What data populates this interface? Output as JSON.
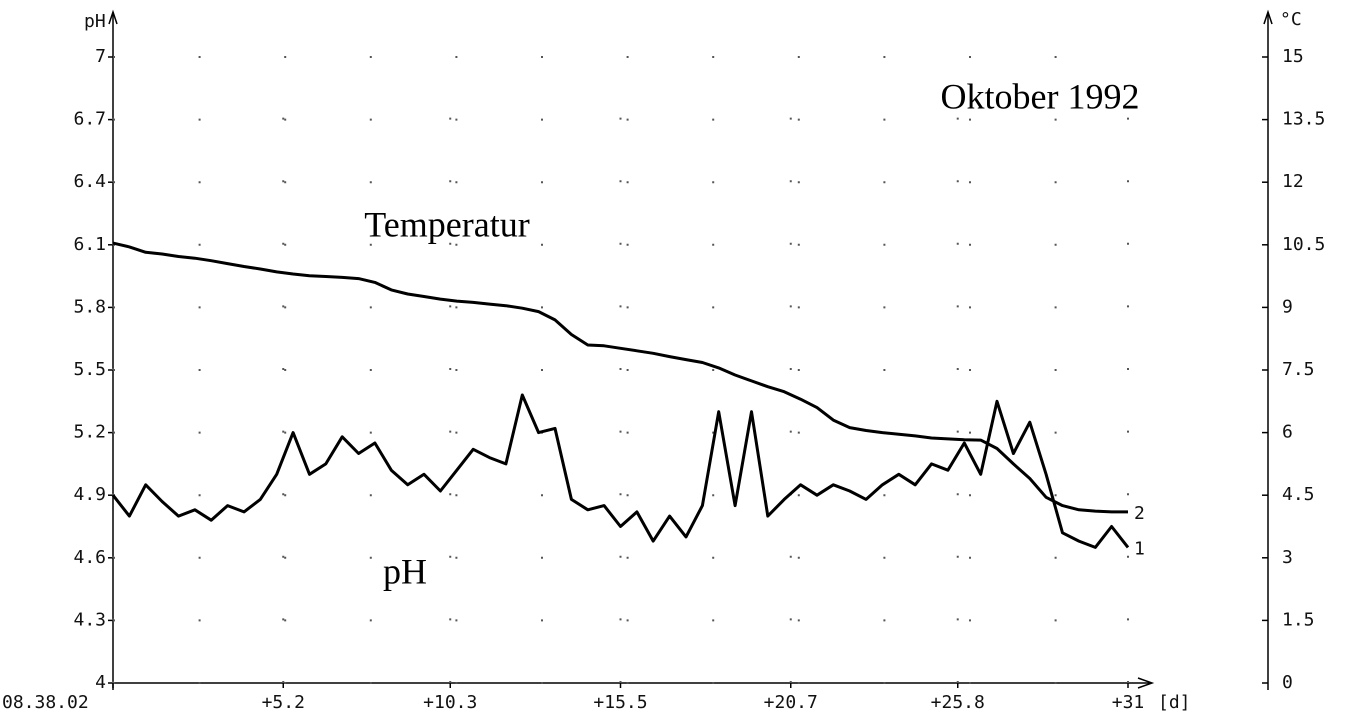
{
  "chart_data": {
    "type": "line",
    "title": "Oktober 1992",
    "ylabel": "pH",
    "y2label": "°C",
    "xlabel": "[d]",
    "x": [
      0,
      0.5,
      1,
      1.5,
      2,
      2.5,
      3,
      3.5,
      4,
      4.5,
      5,
      5.5,
      6,
      6.5,
      7,
      7.5,
      8,
      8.5,
      9,
      9.5,
      10,
      10.5,
      11,
      11.5,
      12,
      12.5,
      13,
      13.5,
      14,
      14.5,
      15,
      15.5,
      16,
      16.5,
      17,
      17.5,
      18,
      18.5,
      19,
      19.5,
      20,
      20.5,
      21,
      21.5,
      22,
      22.5,
      23,
      23.5,
      24,
      24.5,
      25,
      25.5,
      26,
      26.5,
      27,
      27.5,
      28,
      28.5,
      29,
      29.5,
      30,
      30.5,
      31
    ],
    "series": [
      {
        "name": "pH",
        "end_label": "1",
        "color": "#000000",
        "values": [
          4.9,
          4.8,
          4.95,
          4.87,
          4.8,
          4.83,
          4.78,
          4.85,
          4.82,
          4.88,
          5.0,
          5.2,
          5.0,
          5.05,
          5.18,
          5.1,
          5.15,
          5.02,
          4.95,
          5.0,
          4.92,
          5.02,
          5.12,
          5.08,
          5.05,
          5.38,
          5.2,
          5.22,
          4.88,
          4.83,
          4.85,
          4.75,
          4.82,
          4.68,
          4.8,
          4.7,
          4.85,
          5.3,
          4.85,
          5.3,
          4.8,
          4.88,
          4.95,
          4.9,
          4.95,
          4.92,
          4.88,
          4.95,
          5.0,
          4.95,
          5.05,
          5.02,
          5.15,
          5.0,
          5.35,
          5.1,
          5.25,
          5.0,
          4.72,
          4.68,
          4.65,
          4.75,
          4.65
        ]
      },
      {
        "name": "Temperatur",
        "end_label": "2",
        "color": "#000000",
        "axis": "y2",
        "values": [
          10.54,
          10.45,
          10.32,
          10.28,
          10.22,
          10.18,
          10.12,
          10.05,
          9.98,
          9.92,
          9.85,
          9.8,
          9.76,
          9.74,
          9.72,
          9.69,
          9.6,
          9.42,
          9.32,
          9.26,
          9.2,
          9.15,
          9.12,
          9.08,
          9.04,
          8.98,
          8.9,
          8.7,
          8.35,
          8.1,
          8.08,
          8.02,
          7.96,
          7.9,
          7.82,
          7.75,
          7.68,
          7.55,
          7.38,
          7.24,
          7.1,
          6.98,
          6.8,
          6.6,
          6.3,
          6.12,
          6.05,
          6.0,
          5.96,
          5.92,
          5.87,
          5.85,
          5.83,
          5.82,
          5.62,
          5.25,
          4.9,
          4.45,
          4.25,
          4.15,
          4.12,
          4.1,
          4.1
        ]
      }
    ],
    "xlim": [
      0,
      31
    ],
    "xticks": [
      {
        "value": 0,
        "label": "08.38.02"
      },
      {
        "value": 5.2,
        "label": "+5.2"
      },
      {
        "value": 10.3,
        "label": "+10.3"
      },
      {
        "value": 15.5,
        "label": "+15.5"
      },
      {
        "value": 20.7,
        "label": "+20.7"
      },
      {
        "value": 25.8,
        "label": "+25.8"
      },
      {
        "value": 31,
        "label": "+31"
      }
    ],
    "ylim": [
      4,
      7
    ],
    "yticks": [
      4,
      4.3,
      4.6,
      4.9,
      5.2,
      5.5,
      5.8,
      6.1,
      6.4,
      6.7,
      7
    ],
    "y2lim": [
      0,
      15
    ],
    "y2ticks": [
      0,
      1.5,
      3,
      4.5,
      6,
      7.5,
      9,
      10.5,
      12,
      13.5,
      15
    ],
    "grid": true
  }
}
